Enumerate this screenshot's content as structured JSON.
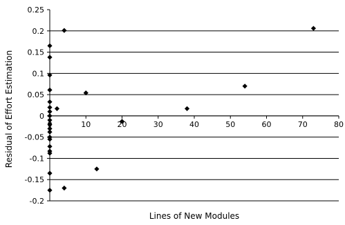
{
  "chart_data": {
    "type": "scatter",
    "title": "",
    "xlabel": "Lines of New Modules",
    "ylabel": "Residual of Effort Estimation",
    "xlim": [
      0,
      80
    ],
    "ylim": [
      -0.2,
      0.25
    ],
    "x_ticks": [
      "0",
      "10",
      "20",
      "30",
      "40",
      "50",
      "60",
      "70",
      "80"
    ],
    "y_ticks": [
      "0.25",
      "0.2",
      "0.15",
      "0.1",
      "0.05",
      "0",
      "-0.05",
      "-0.1",
      "-0.15",
      "-0.2"
    ],
    "x_tick_values": [
      0,
      10,
      20,
      30,
      40,
      50,
      60,
      70,
      80
    ],
    "y_tick_values": [
      0.25,
      0.2,
      0.15,
      0.1,
      0.05,
      0,
      -0.05,
      -0.1,
      -0.15,
      -0.2
    ],
    "grid": "horizontal",
    "legend": "none",
    "marker": "diamond",
    "points": [
      {
        "x": 0,
        "y": 0.165
      },
      {
        "x": 0,
        "y": 0.138
      },
      {
        "x": 0,
        "y": 0.096
      },
      {
        "x": 0,
        "y": 0.061
      },
      {
        "x": 0,
        "y": 0.033
      },
      {
        "x": 0,
        "y": 0.02
      },
      {
        "x": 0,
        "y": 0.01
      },
      {
        "x": 0,
        "y": 0.0
      },
      {
        "x": 0,
        "y": -0.01
      },
      {
        "x": 0,
        "y": -0.02
      },
      {
        "x": 0,
        "y": -0.03
      },
      {
        "x": 0,
        "y": -0.038
      },
      {
        "x": 0,
        "y": -0.05
      },
      {
        "x": 0,
        "y": -0.055
      },
      {
        "x": 0,
        "y": -0.072
      },
      {
        "x": 0,
        "y": -0.083
      },
      {
        "x": 0,
        "y": -0.088
      },
      {
        "x": 0,
        "y": -0.135
      },
      {
        "x": 0,
        "y": -0.175
      },
      {
        "x": 2,
        "y": 0.017
      },
      {
        "x": 4,
        "y": 0.201
      },
      {
        "x": 4,
        "y": -0.17
      },
      {
        "x": 10,
        "y": 0.054
      },
      {
        "x": 13,
        "y": -0.125
      },
      {
        "x": 20,
        "y": -0.013
      },
      {
        "x": 38,
        "y": 0.017
      },
      {
        "x": 54,
        "y": 0.07
      },
      {
        "x": 73,
        "y": 0.206
      }
    ]
  }
}
